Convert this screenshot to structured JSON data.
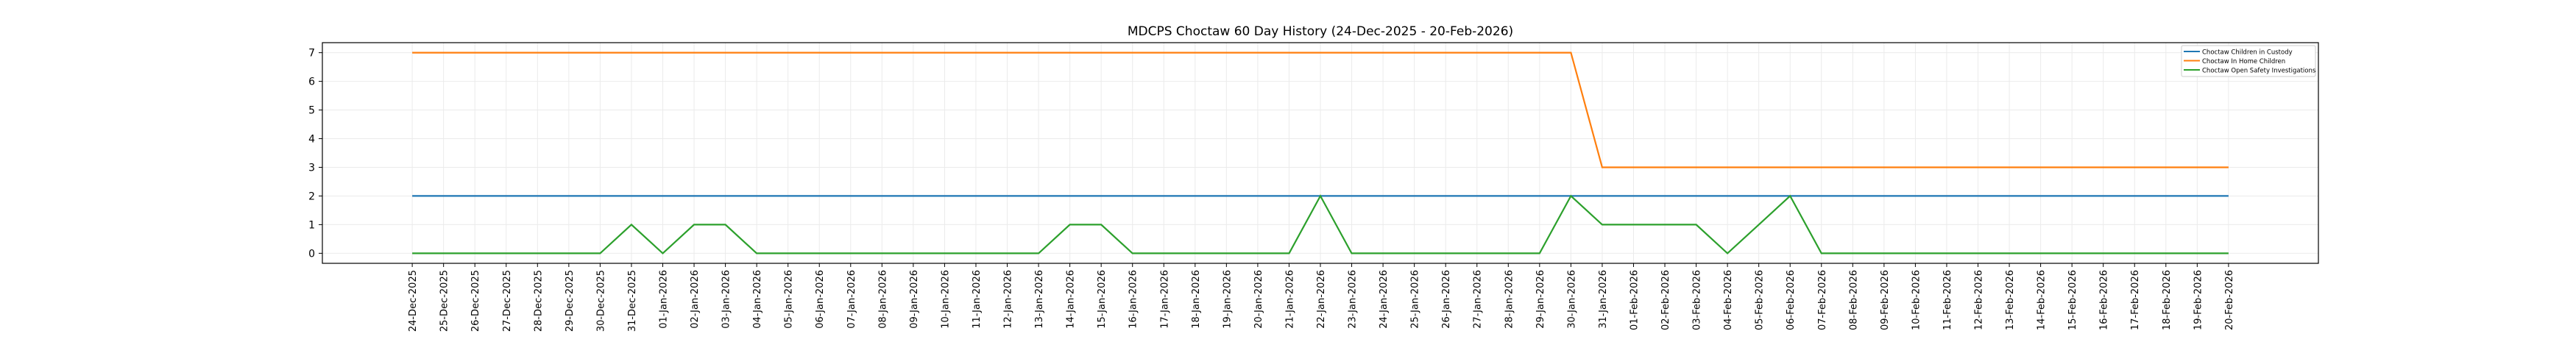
{
  "chart_data": {
    "type": "line",
    "title": "MDCPS Choctaw 60 Day History (24-Dec-2025 - 20-Feb-2026)",
    "xlabel": "",
    "ylabel": "",
    "ylim": [
      -0.35,
      7.35
    ],
    "yticks": [
      0,
      1,
      2,
      3,
      4,
      5,
      6,
      7
    ],
    "grid": true,
    "legend_position": "top-right",
    "x": [
      "24-Dec-2025",
      "25-Dec-2025",
      "26-Dec-2025",
      "27-Dec-2025",
      "28-Dec-2025",
      "29-Dec-2025",
      "30-Dec-2025",
      "31-Dec-2025",
      "01-Jan-2026",
      "02-Jan-2026",
      "03-Jan-2026",
      "04-Jan-2026",
      "05-Jan-2026",
      "06-Jan-2026",
      "07-Jan-2026",
      "08-Jan-2026",
      "09-Jan-2026",
      "10-Jan-2026",
      "11-Jan-2026",
      "12-Jan-2026",
      "13-Jan-2026",
      "14-Jan-2026",
      "15-Jan-2026",
      "16-Jan-2026",
      "17-Jan-2026",
      "18-Jan-2026",
      "19-Jan-2026",
      "20-Jan-2026",
      "21-Jan-2026",
      "22-Jan-2026",
      "23-Jan-2026",
      "24-Jan-2026",
      "25-Jan-2026",
      "26-Jan-2026",
      "27-Jan-2026",
      "28-Jan-2026",
      "29-Jan-2026",
      "30-Jan-2026",
      "31-Jan-2026",
      "01-Feb-2026",
      "02-Feb-2026",
      "03-Feb-2026",
      "04-Feb-2026",
      "05-Feb-2026",
      "06-Feb-2026",
      "07-Feb-2026",
      "08-Feb-2026",
      "09-Feb-2026",
      "10-Feb-2026",
      "11-Feb-2026",
      "12-Feb-2026",
      "13-Feb-2026",
      "14-Feb-2026",
      "15-Feb-2026",
      "16-Feb-2026",
      "17-Feb-2026",
      "18-Feb-2026",
      "19-Feb-2026",
      "20-Feb-2026"
    ],
    "series": [
      {
        "name": "Choctaw Children in Custody",
        "color": "#1f77b4",
        "values": [
          2,
          2,
          2,
          2,
          2,
          2,
          2,
          2,
          2,
          2,
          2,
          2,
          2,
          2,
          2,
          2,
          2,
          2,
          2,
          2,
          2,
          2,
          2,
          2,
          2,
          2,
          2,
          2,
          2,
          2,
          2,
          2,
          2,
          2,
          2,
          2,
          2,
          2,
          2,
          2,
          2,
          2,
          2,
          2,
          2,
          2,
          2,
          2,
          2,
          2,
          2,
          2,
          2,
          2,
          2,
          2,
          2,
          2,
          2
        ]
      },
      {
        "name": "Choctaw In Home Children",
        "color": "#ff7f0e",
        "values": [
          7,
          7,
          7,
          7,
          7,
          7,
          7,
          7,
          7,
          7,
          7,
          7,
          7,
          7,
          7,
          7,
          7,
          7,
          7,
          7,
          7,
          7,
          7,
          7,
          7,
          7,
          7,
          7,
          7,
          7,
          7,
          7,
          7,
          7,
          7,
          7,
          7,
          7,
          3,
          3,
          3,
          3,
          3,
          3,
          3,
          3,
          3,
          3,
          3,
          3,
          3,
          3,
          3,
          3,
          3,
          3,
          3,
          3,
          3
        ]
      },
      {
        "name": "Choctaw Open Safety Investigations",
        "color": "#2ca02c",
        "values": [
          0,
          0,
          0,
          0,
          0,
          0,
          0,
          1,
          0,
          1,
          1,
          0,
          0,
          0,
          0,
          0,
          0,
          0,
          0,
          0,
          0,
          1,
          1,
          0,
          0,
          0,
          0,
          0,
          0,
          2,
          0,
          0,
          0,
          0,
          0,
          0,
          0,
          2,
          1,
          1,
          1,
          1,
          0,
          1,
          2,
          0,
          0,
          0,
          0,
          0,
          0,
          0,
          0,
          0,
          0,
          0,
          0,
          0,
          0
        ]
      }
    ]
  }
}
